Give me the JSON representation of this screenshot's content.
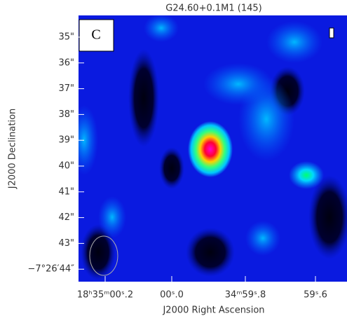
{
  "title": "G24.60+0.1M1 (145)",
  "panel_label": "C",
  "x_axis": {
    "label": "J2000 Right Ascension",
    "ticks": [
      "18ʰ35ᵐ00ˢ.2",
      "00ˢ.0",
      "34ᵐ59ˢ.8",
      "59ˢ.6"
    ]
  },
  "y_axis": {
    "label": "J2000 Declination",
    "ticks": [
      "35\"",
      "36\"",
      "37\"",
      "38\"",
      "39\"",
      "40\"",
      "41\"",
      "42\"",
      "43\"",
      "−7°26′44″"
    ]
  }
}
